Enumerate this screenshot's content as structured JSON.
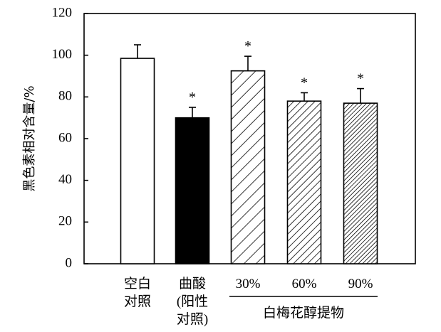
{
  "chart_data": {
    "type": "bar",
    "ylabel": "黑色素相对含量/%",
    "ylim": [
      0,
      120
    ],
    "yticks": [
      0,
      20,
      40,
      60,
      80,
      100,
      120
    ],
    "categories": [
      {
        "lines": [
          "空白",
          "对照"
        ],
        "value": 98.5,
        "error": 6.5,
        "fill": "white",
        "significant": false
      },
      {
        "lines": [
          "曲酸",
          "(阳性",
          "对照)"
        ],
        "value": 70,
        "error": 5,
        "fill": "black",
        "significant": true
      },
      {
        "lines": [
          "30%"
        ],
        "value": 92.5,
        "error": 7,
        "fill": "hatch-sparse",
        "significant": true
      },
      {
        "lines": [
          "60%"
        ],
        "value": 78,
        "error": 4,
        "fill": "hatch-medium",
        "significant": true
      },
      {
        "lines": [
          "90%"
        ],
        "value": 77,
        "error": 7,
        "fill": "hatch-dense",
        "significant": true
      }
    ],
    "significance_marker": "*",
    "group_label": "白梅花醇提物",
    "group_members": [
      "30%",
      "60%",
      "90%"
    ],
    "grid": false,
    "legend": "none"
  }
}
